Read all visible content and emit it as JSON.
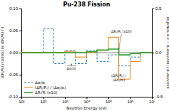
{
  "chart_data": {
    "type": "step",
    "title": "Pu-238 Fission",
    "xlabel": "Neutron Energy (eV)",
    "ylabel": "(ΔRᵢ/Rᵢ) / (Δσⱼ/σⱼ) or (ΔRᵢ/Rᵢ) (-)",
    "y2label": "(σᵢ,JENDL-4.0 − σᵢ,AD/2008) / σᵢ,AD/2008",
    "log": "x",
    "grid": false,
    "legend": "lower left",
    "xlim": [
      10,
      10000000
    ],
    "xticks": [
      {
        "value": 10,
        "label": "10¹"
      },
      {
        "value": 100,
        "label": "10²"
      },
      {
        "value": 1000,
        "label": "10³"
      },
      {
        "value": 10000,
        "label": "10⁴"
      },
      {
        "value": 100000,
        "label": "10⁵"
      },
      {
        "value": 1000000,
        "label": "10⁶"
      },
      {
        "value": 10000000,
        "label": "10⁷"
      }
    ],
    "ylim": [
      -0.1,
      0.1
    ],
    "yticks": [
      {
        "value": -0.1,
        "label": "-0.10"
      },
      -0.05,
      {
        "value": 0.0,
        "label": "0.00"
      },
      0.05,
      {
        "value": 0.1,
        "label": "0.10"
      }
    ],
    "y2lim": [
      -0.5,
      0.5
    ],
    "y2ticks": [
      -0.5,
      {
        "value": 0.0,
        "label": "0.0"
      },
      0.5
    ],
    "x": [
      10,
      100,
      100,
      300,
      300,
      1000,
      1000,
      3000,
      3000,
      10000,
      10000,
      30000,
      30000,
      100000,
      100000,
      300000,
      300000,
      1000000,
      1000000,
      3000000,
      3000000,
      10000000
    ],
    "series": [
      {
        "name": "Δσⱼ/σⱼ",
        "line_style": "dashed",
        "values": [
          0.0,
          0.0,
          0.055,
          0.055,
          -0.025,
          -0.025,
          0.005,
          0.005,
          -0.025,
          -0.025,
          0.005,
          0.005,
          -0.02,
          -0.02,
          -0.005,
          -0.005,
          -0.03,
          -0.03,
          -0.01,
          -0.01,
          0.0,
          0.0
        ]
      },
      {
        "name": "(ΔRᵢ/Rᵢ) / (Δσⱼ/σⱼ)",
        "line_style": "solid",
        "values": [
          0.0,
          0.0,
          0.0,
          0.0,
          0.0,
          0.0,
          0.003,
          0.003,
          -0.01,
          -0.01,
          0.0,
          0.0,
          0.005,
          0.005,
          0.035,
          0.035,
          -0.06,
          -0.06,
          -0.02,
          -0.02,
          0.0,
          0.0
        ]
      },
      {
        "name": "ΔRᵢ/Rᵢ (x10)",
        "line_style": "solid",
        "values": [
          0.0,
          0.0,
          0.0,
          0.0,
          0.0,
          0.0,
          0.0,
          0.0,
          0.0,
          0.0,
          0.002,
          0.002,
          0.006,
          0.006,
          0.008,
          0.008,
          -0.005,
          -0.005,
          -0.002,
          -0.002,
          0.0,
          0.0
        ]
      }
    ],
    "hlines": [
      0
    ],
    "annotations": [
      {
        "text": "Δσⱼ/σⱼ",
        "x": 2000,
        "y": -0.038,
        "arrow_x": 2000,
        "arrow_y": -0.025
      },
      {
        "text": "ΔRᵢ/Rᵢ (x10)",
        "x": 400000,
        "y": 0.045,
        "arrow_x": 300000,
        "arrow_y": 0.0085
      },
      {
        "text": "(ΔRᵢ/Rᵢ) /\n(Δσⱼ/σⱼ)",
        "x": 300000,
        "y": -0.055
      }
    ]
  }
}
